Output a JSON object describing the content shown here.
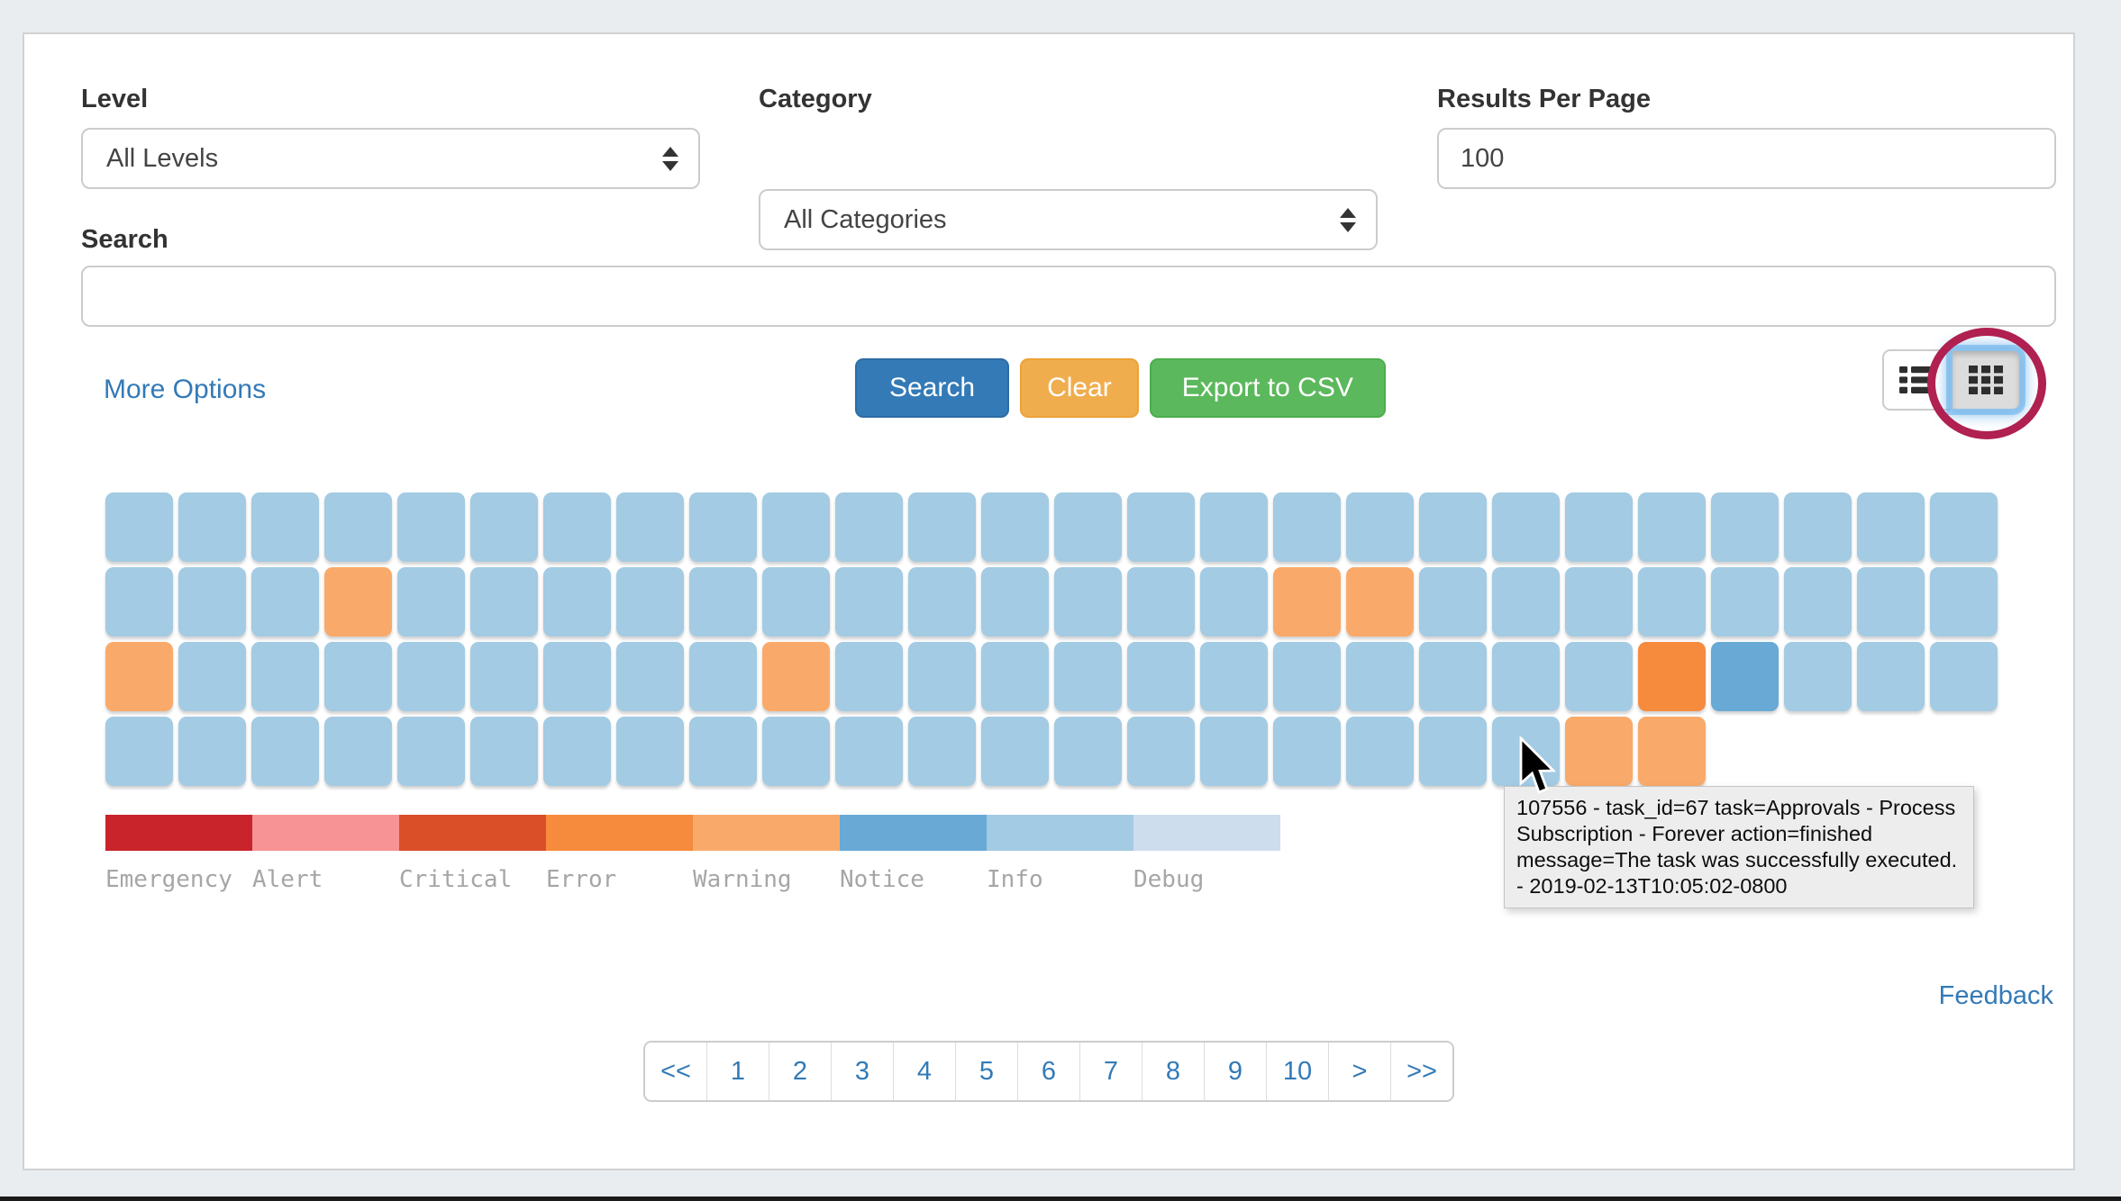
{
  "filters": {
    "level_label": "Level",
    "level_value": "All Levels",
    "category_label": "Category",
    "category_value": "All Categories",
    "per_page_label": "Results Per Page",
    "per_page_value": "100",
    "search_label": "Search",
    "search_value": ""
  },
  "actions": {
    "more_options": "More Options",
    "search": "Search",
    "clear": "Clear",
    "export": "Export to CSV"
  },
  "view_toggle": {
    "buttons": [
      {
        "icon": "list-icon",
        "active": false
      },
      {
        "icon": "grid-icon",
        "active": true
      }
    ],
    "annotation": "red-circle-around-grid-view-button"
  },
  "legend": [
    {
      "label": "Emergency",
      "color": "#c9242b"
    },
    {
      "label": "Alert",
      "color": "#f79394"
    },
    {
      "label": "Critical",
      "color": "#da4f27"
    },
    {
      "label": "Error",
      "color": "#f68b3d"
    },
    {
      "label": "Warning",
      "color": "#f9aa6b"
    },
    {
      "label": "Notice",
      "color": "#68a9d6"
    },
    {
      "label": "Info",
      "color": "#a3cbe3"
    },
    {
      "label": "Debug",
      "color": "#cdddee"
    }
  ],
  "level_colors": {
    "info": "#a3cbe3",
    "warning": "#f9aa6b",
    "error": "#f68b3d",
    "notice": "#68a9d6"
  },
  "grid": {
    "rows": [
      [
        "info",
        "info",
        "info",
        "info",
        "info",
        "info",
        "info",
        "info",
        "info",
        "info",
        "info",
        "info",
        "info",
        "info",
        "info",
        "info",
        "info",
        "info",
        "info",
        "info",
        "info",
        "info",
        "info",
        "info",
        "info",
        "info"
      ],
      [
        "info",
        "info",
        "info",
        "warning",
        "info",
        "info",
        "info",
        "info",
        "info",
        "info",
        "info",
        "info",
        "info",
        "info",
        "info",
        "info",
        "warning",
        "warning",
        "info",
        "info",
        "info",
        "info",
        "info",
        "info",
        "info",
        "info"
      ],
      [
        "warning",
        "info",
        "info",
        "info",
        "info",
        "info",
        "info",
        "info",
        "info",
        "warning",
        "info",
        "info",
        "info",
        "info",
        "info",
        "info",
        "info",
        "info",
        "info",
        "info",
        "info",
        "error",
        "notice",
        "info",
        "info",
        "info"
      ],
      [
        "info",
        "info",
        "info",
        "info",
        "info",
        "info",
        "info",
        "info",
        "info",
        "info",
        "info",
        "info",
        "info",
        "info",
        "info",
        "info",
        "info",
        "info",
        "info",
        "info",
        "warning",
        "warning"
      ]
    ]
  },
  "tooltip": {
    "text": "107556 - task_id=67 task=Approvals - Process Subscription - Forever action=finished message=The task was successfully executed. - 2019-02-13T10:05:02-0800"
  },
  "pagination": {
    "items": [
      "<<",
      "1",
      "2",
      "3",
      "4",
      "5",
      "6",
      "7",
      "8",
      "9",
      "10",
      ">",
      ">>"
    ]
  },
  "feedback_label": "Feedback",
  "colors": {
    "link": "#337ab7",
    "search_button": "#337ab7",
    "clear_button": "#f0ad4e",
    "export_button": "#5cb85c",
    "annotation": "#b02050",
    "page_background": "#e9edf0"
  }
}
